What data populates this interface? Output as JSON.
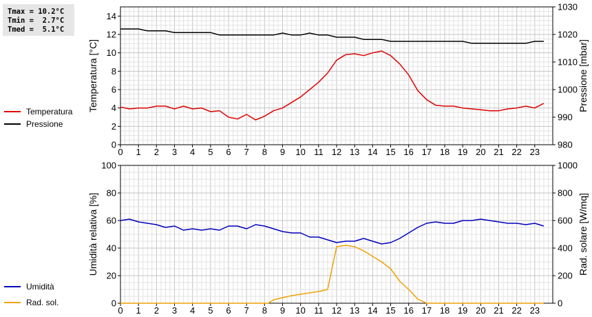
{
  "stats": {
    "tmax": "Tmax = 10.2°C",
    "tmin": "Tmin =  2.7°C",
    "tmed": "Tmed =  5.1°C"
  },
  "legend_top": [
    {
      "label": "Temperatura",
      "color": "#dd0000"
    },
    {
      "label": "Pressione",
      "color": "#000000"
    }
  ],
  "legend_bottom": [
    {
      "label": "Umidità",
      "color": "#0000bb"
    },
    {
      "label": "Rad. sol.",
      "color": "#f0a000"
    }
  ],
  "chart_data": [
    {
      "type": "line",
      "ylabel": "Temperatura [°C]",
      "y2label": "Pressione [mbar]",
      "xlim": [
        0,
        24
      ],
      "ylim": [
        0,
        15
      ],
      "y2lim": [
        980,
        1030
      ],
      "x_ticks": [
        0,
        1,
        2,
        3,
        4,
        5,
        6,
        7,
        8,
        9,
        10,
        11,
        12,
        13,
        14,
        15,
        16,
        17,
        18,
        19,
        20,
        21,
        22,
        23
      ],
      "y_ticks": [
        0,
        2,
        4,
        6,
        8,
        10,
        12,
        14
      ],
      "y2_ticks": [
        980,
        990,
        1000,
        1010,
        1020,
        1030
      ],
      "grid": true,
      "series": [
        {
          "name": "Temperatura",
          "color": "#dd0000",
          "axis": "left",
          "points": [
            [
              0,
              4.1
            ],
            [
              0.5,
              3.9
            ],
            [
              1,
              4.0
            ],
            [
              1.5,
              4.0
            ],
            [
              2,
              4.2
            ],
            [
              2.5,
              4.2
            ],
            [
              3,
              3.9
            ],
            [
              3.5,
              4.2
            ],
            [
              4,
              3.9
            ],
            [
              4.5,
              4.0
            ],
            [
              5,
              3.6
            ],
            [
              5.5,
              3.7
            ],
            [
              6,
              3.0
            ],
            [
              6.5,
              2.8
            ],
            [
              7,
              3.3
            ],
            [
              7.5,
              2.7
            ],
            [
              8,
              3.1
            ],
            [
              8.5,
              3.7
            ],
            [
              9,
              4.0
            ],
            [
              9.5,
              4.6
            ],
            [
              10,
              5.2
            ],
            [
              10.5,
              6.0
            ],
            [
              11,
              6.8
            ],
            [
              11.5,
              7.8
            ],
            [
              12,
              9.2
            ],
            [
              12.5,
              9.8
            ],
            [
              13,
              9.9
            ],
            [
              13.5,
              9.7
            ],
            [
              14,
              10.0
            ],
            [
              14.5,
              10.2
            ],
            [
              15,
              9.7
            ],
            [
              15.5,
              8.8
            ],
            [
              16,
              7.6
            ],
            [
              16.5,
              5.9
            ],
            [
              17,
              4.9
            ],
            [
              17.5,
              4.3
            ],
            [
              18,
              4.2
            ],
            [
              18.5,
              4.2
            ],
            [
              19,
              4.0
            ],
            [
              19.5,
              3.9
            ],
            [
              20,
              3.8
            ],
            [
              20.5,
              3.7
            ],
            [
              21,
              3.7
            ],
            [
              21.5,
              3.9
            ],
            [
              22,
              4.0
            ],
            [
              22.5,
              4.2
            ],
            [
              23,
              4.0
            ],
            [
              23.5,
              4.5
            ]
          ]
        },
        {
          "name": "Pressione",
          "color": "#000000",
          "axis": "right",
          "points": [
            [
              0,
              1022
            ],
            [
              1,
              1022
            ],
            [
              1.5,
              1021.3
            ],
            [
              2.5,
              1021.3
            ],
            [
              3,
              1020.7
            ],
            [
              5,
              1020.7
            ],
            [
              5.5,
              1019.8
            ],
            [
              8.5,
              1019.8
            ],
            [
              9,
              1020.5
            ],
            [
              9.5,
              1019.8
            ],
            [
              10,
              1019.8
            ],
            [
              10.5,
              1020.5
            ],
            [
              11,
              1019.8
            ],
            [
              11.5,
              1019.8
            ],
            [
              12,
              1019.0
            ],
            [
              13,
              1019.0
            ],
            [
              13.5,
              1018.2
            ],
            [
              14.5,
              1018.2
            ],
            [
              15,
              1017.5
            ],
            [
              19,
              1017.5
            ],
            [
              19.5,
              1016.8
            ],
            [
              22.5,
              1016.8
            ],
            [
              23,
              1017.5
            ],
            [
              23.5,
              1017.5
            ]
          ]
        }
      ]
    },
    {
      "type": "line",
      "ylabel": "Umidità relativa [%]",
      "y2label": "Rad. solare [W/mq]",
      "xlim": [
        0,
        24
      ],
      "ylim": [
        0,
        100
      ],
      "y2lim": [
        0,
        1000
      ],
      "x_ticks": [
        0,
        1,
        2,
        3,
        4,
        5,
        6,
        7,
        8,
        9,
        10,
        11,
        12,
        13,
        14,
        15,
        16,
        17,
        18,
        19,
        20,
        21,
        22,
        23
      ],
      "y_ticks": [
        0,
        20,
        40,
        60,
        80,
        100
      ],
      "y2_ticks": [
        0,
        200,
        400,
        600,
        800,
        1000
      ],
      "grid": true,
      "series": [
        {
          "name": "Umidità",
          "color": "#0000bb",
          "axis": "left",
          "points": [
            [
              0,
              60
            ],
            [
              0.5,
              61
            ],
            [
              1,
              59
            ],
            [
              1.5,
              58
            ],
            [
              2,
              57
            ],
            [
              2.5,
              55
            ],
            [
              3,
              56
            ],
            [
              3.5,
              53
            ],
            [
              4,
              54
            ],
            [
              4.5,
              53
            ],
            [
              5,
              54
            ],
            [
              5.5,
              53
            ],
            [
              6,
              56
            ],
            [
              6.5,
              56
            ],
            [
              7,
              54
            ],
            [
              7.5,
              57
            ],
            [
              8,
              56
            ],
            [
              8.5,
              54
            ],
            [
              9,
              52
            ],
            [
              9.5,
              51
            ],
            [
              10,
              51
            ],
            [
              10.5,
              48
            ],
            [
              11,
              48
            ],
            [
              11.5,
              46
            ],
            [
              12,
              44
            ],
            [
              12.5,
              45
            ],
            [
              13,
              45
            ],
            [
              13.5,
              47
            ],
            [
              14,
              45
            ],
            [
              14.5,
              43
            ],
            [
              15,
              44
            ],
            [
              15.5,
              47
            ],
            [
              16,
              51
            ],
            [
              16.5,
              55
            ],
            [
              17,
              58
            ],
            [
              17.5,
              59
            ],
            [
              18,
              58
            ],
            [
              18.5,
              58
            ],
            [
              19,
              60
            ],
            [
              19.5,
              60
            ],
            [
              20,
              61
            ],
            [
              20.5,
              60
            ],
            [
              21,
              59
            ],
            [
              21.5,
              58
            ],
            [
              22,
              58
            ],
            [
              22.5,
              57
            ],
            [
              23,
              58
            ],
            [
              23.5,
              56
            ]
          ]
        },
        {
          "name": "Rad. sol.",
          "color": "#f0a000",
          "axis": "right",
          "points": [
            [
              0,
              0
            ],
            [
              8.2,
              0
            ],
            [
              8.5,
              25
            ],
            [
              9,
              40
            ],
            [
              9.5,
              55
            ],
            [
              10,
              65
            ],
            [
              10.5,
              75
            ],
            [
              11,
              85
            ],
            [
              11.5,
              100
            ],
            [
              12,
              410
            ],
            [
              12.5,
              420
            ],
            [
              13,
              410
            ],
            [
              13.5,
              380
            ],
            [
              14,
              340
            ],
            [
              14.5,
              300
            ],
            [
              15,
              250
            ],
            [
              15.5,
              160
            ],
            [
              16,
              100
            ],
            [
              16.5,
              30
            ],
            [
              17,
              0
            ],
            [
              23.5,
              0
            ]
          ]
        }
      ]
    }
  ]
}
